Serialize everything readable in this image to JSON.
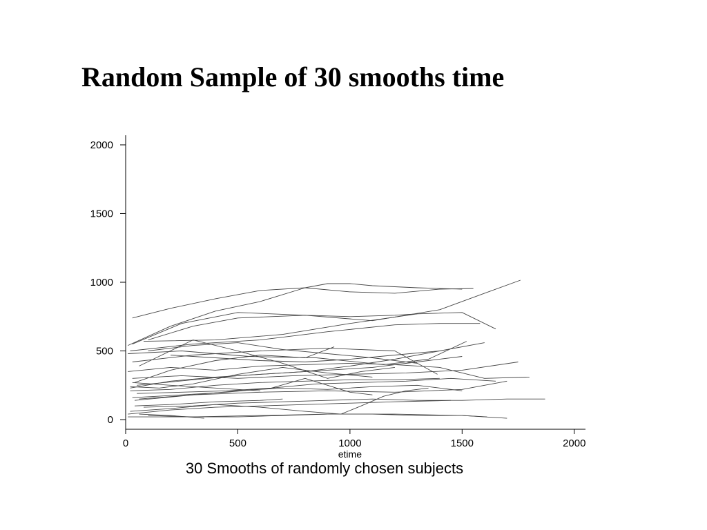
{
  "slide": {
    "title": "Random Sample of 30 smooths time"
  },
  "chart_data": {
    "type": "line",
    "title": "",
    "caption": "30 Smooths of randomly chosen subjects",
    "xlabel": "etime",
    "ylabel": "",
    "xlim": [
      0,
      2050
    ],
    "ylim": [
      -70,
      2070
    ],
    "xticks": [
      0,
      500,
      1000,
      1500,
      2000
    ],
    "yticks": [
      0,
      500,
      1000,
      1500,
      2000
    ],
    "line_color": "#444444",
    "legend": "none",
    "grid": false,
    "series": [
      {
        "x": [
          30,
          200,
          400,
          600,
          800,
          1000,
          1200,
          1400,
          1550
        ],
        "y": [
          740,
          810,
          880,
          940,
          960,
          930,
          920,
          950,
          955
        ]
      },
      {
        "x": [
          10,
          200,
          400,
          600,
          800,
          900,
          1000,
          1100,
          1300,
          1500
        ],
        "y": [
          540,
          680,
          790,
          860,
          960,
          990,
          990,
          975,
          960,
          950
        ]
      },
      {
        "x": [
          30,
          250,
          500,
          800,
          1100,
          1400,
          1600,
          1760
        ],
        "y": [
          550,
          700,
          780,
          760,
          720,
          800,
          920,
          1015
        ]
      },
      {
        "x": [
          100,
          300,
          500,
          800,
          1000,
          1200,
          1300
        ],
        "y": [
          580,
          680,
          740,
          760,
          750,
          760,
          770
        ]
      },
      {
        "x": [
          80,
          400,
          700,
          1000,
          1300,
          1500,
          1650
        ],
        "y": [
          570,
          580,
          620,
          700,
          770,
          780,
          660
        ]
      },
      {
        "x": [
          20,
          300,
          600,
          900,
          1200,
          1400,
          1580
        ],
        "y": [
          500,
          550,
          580,
          640,
          690,
          700,
          700
        ]
      },
      {
        "x": [
          30,
          300,
          600,
          900,
          1200,
          1390
        ],
        "y": [
          420,
          470,
          500,
          520,
          500,
          330
        ]
      },
      {
        "x": [
          10,
          250,
          550,
          850,
          1150,
          1350,
          1520
        ],
        "y": [
          480,
          500,
          460,
          450,
          400,
          440,
          570
        ]
      },
      {
        "x": [
          60,
          300,
          500,
          700,
          900,
          1050,
          1200
        ],
        "y": [
          390,
          580,
          500,
          410,
          300,
          350,
          380
        ]
      },
      {
        "x": [
          40,
          200,
          400,
          600,
          800,
          930
        ],
        "y": [
          270,
          360,
          430,
          470,
          450,
          530
        ]
      },
      {
        "x": [
          20,
          200,
          400,
          600,
          800,
          1000,
          1200,
          1400,
          1600
        ],
        "y": [
          230,
          280,
          310,
          330,
          350,
          390,
          440,
          500,
          560
        ]
      },
      {
        "x": [
          50,
          300,
          500,
          700,
          900,
          1100,
          1300,
          1500
        ],
        "y": [
          250,
          290,
          320,
          340,
          360,
          380,
          420,
          460
        ]
      },
      {
        "x": [
          10,
          200,
          400,
          600,
          800,
          1000,
          1200,
          1400,
          1600,
          1800
        ],
        "y": [
          350,
          380,
          360,
          390,
          400,
          410,
          400,
          380,
          300,
          310
        ]
      },
      {
        "x": [
          30,
          250,
          500,
          750,
          1000,
          1250,
          1500,
          1750
        ],
        "y": [
          300,
          320,
          300,
          320,
          330,
          340,
          360,
          420
        ]
      },
      {
        "x": [
          20,
          200,
          400,
          600,
          800,
          1000,
          1200,
          1400
        ],
        "y": [
          210,
          220,
          250,
          270,
          280,
          290,
          290,
          300
        ]
      },
      {
        "x": [
          40,
          300,
          600,
          900,
          1200,
          1500,
          1700
        ],
        "y": [
          140,
          180,
          200,
          210,
          200,
          220,
          280
        ]
      },
      {
        "x": [
          60,
          300,
          500,
          700,
          900,
          1100,
          1300,
          1500
        ],
        "y": [
          150,
          180,
          210,
          230,
          220,
          240,
          250,
          210
        ]
      },
      {
        "x": [
          30,
          250,
          450,
          650,
          800,
          900,
          1000,
          1100
        ],
        "y": [
          160,
          180,
          200,
          230,
          300,
          250,
          200,
          180
        ]
      },
      {
        "x": [
          80,
          300,
          500,
          700,
          900,
          1100,
          1300,
          1500,
          1700,
          1870
        ],
        "y": [
          90,
          100,
          120,
          130,
          140,
          150,
          140,
          140,
          150,
          150
        ]
      },
      {
        "x": [
          10,
          200,
          400,
          600,
          800,
          1000,
          1200,
          1450
        ],
        "y": [
          40,
          70,
          90,
          100,
          110,
          120,
          130,
          140
        ]
      },
      {
        "x": [
          20,
          200,
          400,
          600,
          800,
          960,
          1050,
          1150,
          1250,
          1350
        ],
        "y": [
          60,
          80,
          110,
          90,
          60,
          40,
          100,
          170,
          210,
          230
        ]
      },
      {
        "x": [
          10,
          300,
          600,
          900,
          1200,
          1500,
          1700
        ],
        "y": [
          20,
          20,
          30,
          40,
          40,
          30,
          10
        ]
      },
      {
        "x": [
          100,
          300,
          500,
          700,
          900,
          1100,
          1300,
          1500,
          1610
        ],
        "y": [
          30,
          20,
          20,
          30,
          40,
          40,
          30,
          30,
          20
        ]
      },
      {
        "x": [
          60,
          200,
          350
        ],
        "y": [
          40,
          30,
          10
        ]
      },
      {
        "x": [
          40,
          200,
          400,
          600,
          700
        ],
        "y": [
          100,
          110,
          130,
          140,
          150
        ]
      },
      {
        "x": [
          200,
          400,
          600,
          800,
          1000,
          1200,
          1400
        ],
        "y": [
          470,
          450,
          430,
          420,
          440,
          470,
          500
        ]
      },
      {
        "x": [
          30,
          200,
          400,
          600
        ],
        "y": [
          270,
          250,
          230,
          210
        ]
      },
      {
        "x": [
          100,
          300,
          500,
          700,
          900,
          1100,
          1300
        ],
        "y": [
          500,
          540,
          560,
          510,
          480,
          450,
          410
        ]
      },
      {
        "x": [
          50,
          250,
          450,
          650,
          850,
          1050,
          1250,
          1450,
          1650
        ],
        "y": [
          190,
          200,
          210,
          230,
          260,
          270,
          280,
          300,
          280
        ]
      },
      {
        "x": [
          20,
          150,
          300,
          500,
          700,
          900,
          1100
        ],
        "y": [
          240,
          230,
          260,
          330,
          380,
          340,
          310
        ]
      }
    ]
  }
}
